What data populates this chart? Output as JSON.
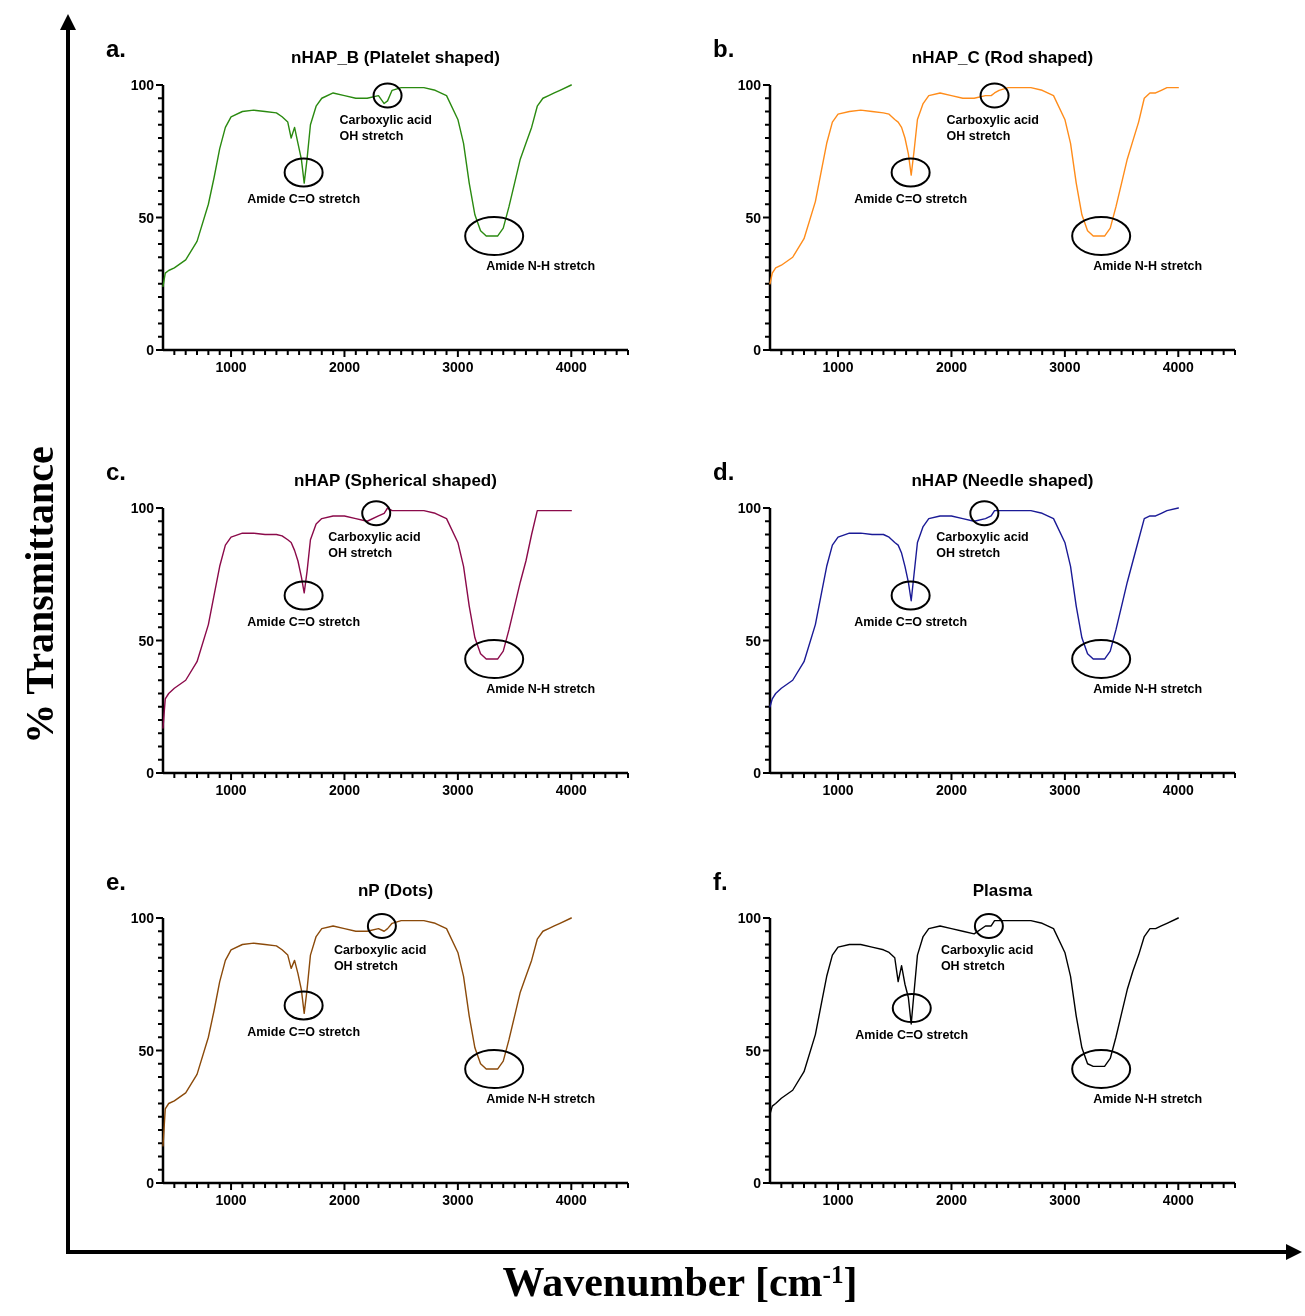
{
  "chart_data": [
    {
      "type": "line",
      "title": "nHAP_B (Platelet shaped)",
      "xlabel": "Wavenumber [cm$^{-1}$]",
      "ylabel": "% Transmittance",
      "xlim": [
        400,
        4500
      ],
      "ylim": [
        0,
        100
      ],
      "xticks": [
        {
          "value": 500,
          "label": null
        },
        {
          "value": 600,
          "label": null
        },
        {
          "value": 700,
          "label": null
        },
        {
          "value": 800,
          "label": null
        },
        {
          "value": 900,
          "label": null
        },
        1000,
        {
          "value": 1100,
          "label": null
        },
        {
          "value": 1200,
          "label": null
        },
        {
          "value": 1300,
          "label": null
        },
        {
          "value": 1400,
          "label": null
        },
        {
          "value": 1500,
          "label": null
        },
        {
          "value": 1600,
          "label": null
        },
        {
          "value": 1700,
          "label": null
        },
        {
          "value": 1800,
          "label": null
        },
        {
          "value": 1900,
          "label": null
        },
        2000,
        {
          "value": 2100,
          "label": null
        },
        {
          "value": 2200,
          "label": null
        },
        {
          "value": 2300,
          "label": null
        },
        {
          "value": 2400,
          "label": null
        },
        {
          "value": 2500,
          "label": null
        },
        {
          "value": 2600,
          "label": null
        },
        {
          "value": 2700,
          "label": null
        },
        {
          "value": 2800,
          "label": null
        },
        {
          "value": 2900,
          "label": null
        },
        3000,
        {
          "value": 3100,
          "label": null
        },
        {
          "value": 3200,
          "label": null
        },
        {
          "value": 3300,
          "label": null
        },
        {
          "value": 3400,
          "label": null
        },
        {
          "value": 3500,
          "label": null
        },
        {
          "value": 3600,
          "label": null
        },
        {
          "value": 3700,
          "label": null
        },
        {
          "value": 3800,
          "label": null
        },
        {
          "value": 3900,
          "label": null
        },
        4000,
        {
          "value": 4100,
          "label": null
        },
        {
          "value": 4200,
          "label": null
        },
        {
          "value": 4300,
          "label": null
        },
        {
          "value": 4400,
          "label": null
        },
        {
          "value": 4500,
          "label": null
        }
      ],
      "yticks": [
        0,
        {
          "value": 5,
          "label": null
        },
        {
          "value": 10,
          "label": null
        },
        {
          "value": 15,
          "label": null
        },
        {
          "value": 20,
          "label": null
        },
        {
          "value": 25,
          "label": null
        },
        {
          "value": 30,
          "label": null
        },
        {
          "value": 35,
          "label": null
        },
        {
          "value": 40,
          "label": null
        },
        {
          "value": 45,
          "label": null
        },
        50,
        {
          "value": 55,
          "label": null
        },
        {
          "value": 60,
          "label": null
        },
        {
          "value": 65,
          "label": null
        },
        {
          "value": 70,
          "label": null
        },
        {
          "value": 75,
          "label": null
        },
        {
          "value": 80,
          "label": null
        },
        {
          "value": 85,
          "label": null
        },
        {
          "value": 90,
          "label": null
        },
        {
          "value": 95,
          "label": null
        },
        100
      ],
      "x": [
        400,
        420,
        450,
        500,
        600,
        700,
        800,
        850,
        900,
        950,
        1000,
        1100,
        1200,
        1300,
        1400,
        1450,
        1500,
        1530,
        1560,
        1590,
        1620,
        1645,
        1670,
        1700,
        1750,
        1800,
        1900,
        2000,
        2100,
        2200,
        2300,
        2350,
        2380,
        2420,
        2500,
        2600,
        2700,
        2800,
        2900,
        3000,
        3050,
        3100,
        3150,
        3200,
        3250,
        3350,
        3400,
        3450,
        3500,
        3550,
        3600,
        3650,
        3700,
        3750,
        3800,
        3850,
        3900,
        4000
      ],
      "series": [
        {
          "color": "#2a8a10",
          "values": [
            24,
            29,
            30,
            31,
            34,
            41,
            55,
            65,
            76,
            84,
            88,
            90,
            90.5,
            90,
            89.5,
            88,
            86,
            80,
            84,
            78,
            72,
            63,
            72,
            85,
            92,
            95,
            97,
            96,
            95,
            95,
            96,
            93,
            94,
            98,
            99,
            99,
            99,
            98,
            96,
            87,
            78,
            63,
            51,
            45,
            43,
            43,
            46,
            54,
            63,
            72,
            78,
            84,
            92,
            95,
            96,
            97,
            98,
            100
          ]
        }
      ],
      "annotations": [
        {
          "text": "Amide C=O stretch",
          "x": 1640,
          "y": 67
        },
        {
          "text": "Carboxylic acid\nOH stretch",
          "x": 2380,
          "y": 96
        },
        {
          "text": "Amide N-H stretch",
          "x": 3320,
          "y": 43
        },
        "a."
      ]
    },
    {
      "type": "line",
      "title": "nHAP_C (Rod shaped)",
      "xlim": [
        400,
        4500
      ],
      "ylim": [
        0,
        100
      ],
      "xticks": [
        {
          "value": 500,
          "label": null
        },
        {
          "value": 600,
          "label": null
        },
        {
          "value": 700,
          "label": null
        },
        {
          "value": 800,
          "label": null
        },
        {
          "value": 900,
          "label": null
        },
        1000,
        {
          "value": 1100,
          "label": null
        },
        {
          "value": 1200,
          "label": null
        },
        {
          "value": 1300,
          "label": null
        },
        {
          "value": 1400,
          "label": null
        },
        {
          "value": 1500,
          "label": null
        },
        {
          "value": 1600,
          "label": null
        },
        {
          "value": 1700,
          "label": null
        },
        {
          "value": 1800,
          "label": null
        },
        {
          "value": 1900,
          "label": null
        },
        2000,
        {
          "value": 2100,
          "label": null
        },
        {
          "value": 2200,
          "label": null
        },
        {
          "value": 2300,
          "label": null
        },
        {
          "value": 2400,
          "label": null
        },
        {
          "value": 2500,
          "label": null
        },
        {
          "value": 2600,
          "label": null
        },
        {
          "value": 2700,
          "label": null
        },
        {
          "value": 2800,
          "label": null
        },
        {
          "value": 2900,
          "label": null
        },
        3000,
        {
          "value": 3100,
          "label": null
        },
        {
          "value": 3200,
          "label": null
        },
        {
          "value": 3300,
          "label": null
        },
        {
          "value": 3400,
          "label": null
        },
        {
          "value": 3500,
          "label": null
        },
        {
          "value": 3600,
          "label": null
        },
        {
          "value": 3700,
          "label": null
        },
        {
          "value": 3800,
          "label": null
        },
        {
          "value": 3900,
          "label": null
        },
        4000,
        {
          "value": 4100,
          "label": null
        },
        {
          "value": 4200,
          "label": null
        },
        {
          "value": 4300,
          "label": null
        },
        {
          "value": 4400,
          "label": null
        },
        {
          "value": 4500,
          "label": null
        }
      ],
      "yticks": [
        0,
        {
          "value": 5,
          "label": null
        },
        {
          "value": 10,
          "label": null
        },
        {
          "value": 15,
          "label": null
        },
        {
          "value": 20,
          "label": null
        },
        {
          "value": 25,
          "label": null
        },
        {
          "value": 30,
          "label": null
        },
        {
          "value": 35,
          "label": null
        },
        {
          "value": 40,
          "label": null
        },
        {
          "value": 45,
          "label": null
        },
        50,
        {
          "value": 55,
          "label": null
        },
        {
          "value": 60,
          "label": null
        },
        {
          "value": 65,
          "label": null
        },
        {
          "value": 70,
          "label": null
        },
        {
          "value": 75,
          "label": null
        },
        {
          "value": 80,
          "label": null
        },
        {
          "value": 85,
          "label": null
        },
        {
          "value": 90,
          "label": null
        },
        {
          "value": 95,
          "label": null
        },
        100
      ],
      "x": [
        400,
        420,
        450,
        500,
        600,
        700,
        800,
        850,
        900,
        950,
        1000,
        1100,
        1200,
        1300,
        1400,
        1450,
        1500,
        1530,
        1560,
        1590,
        1620,
        1645,
        1670,
        1700,
        1750,
        1800,
        1900,
        2000,
        2100,
        2200,
        2300,
        2350,
        2380,
        2420,
        2500,
        2600,
        2700,
        2800,
        2900,
        3000,
        3050,
        3100,
        3150,
        3200,
        3250,
        3350,
        3400,
        3450,
        3500,
        3550,
        3600,
        3650,
        3700,
        3750,
        3800,
        3850,
        3900,
        4000
      ],
      "series": [
        {
          "color": "#ff8c1a",
          "values": [
            25,
            29,
            31,
            32,
            35,
            42,
            56,
            67,
            78,
            86,
            89,
            90,
            90.5,
            90,
            89.5,
            89,
            87,
            86,
            84,
            80,
            74,
            66,
            75,
            87,
            93,
            96,
            97,
            96,
            95,
            95,
            96,
            96,
            97,
            98,
            99,
            99,
            99,
            98,
            96,
            87,
            78,
            63,
            51,
            45,
            43,
            43,
            46,
            54,
            63,
            72,
            79,
            86,
            95,
            97,
            97,
            98,
            99,
            99
          ]
        }
      ],
      "annotations": [
        {
          "text": "Amide C=O stretch",
          "x": 1640,
          "y": 67
        },
        {
          "text": "Carboxylic acid\nOH stretch",
          "x": 2380,
          "y": 96
        },
        {
          "text": "Amide N-H stretch",
          "x": 3320,
          "y": 43
        },
        "b."
      ]
    },
    {
      "type": "line",
      "title": "nHAP (Spherical shaped)",
      "xlim": [
        400,
        4500
      ],
      "ylim": [
        0,
        100
      ],
      "xticks": [
        {
          "value": 500,
          "label": null
        },
        {
          "value": 600,
          "label": null
        },
        {
          "value": 700,
          "label": null
        },
        {
          "value": 800,
          "label": null
        },
        {
          "value": 900,
          "label": null
        },
        1000,
        {
          "value": 1100,
          "label": null
        },
        {
          "value": 1200,
          "label": null
        },
        {
          "value": 1300,
          "label": null
        },
        {
          "value": 1400,
          "label": null
        },
        {
          "value": 1500,
          "label": null
        },
        {
          "value": 1600,
          "label": null
        },
        {
          "value": 1700,
          "label": null
        },
        {
          "value": 1800,
          "label": null
        },
        {
          "value": 1900,
          "label": null
        },
        2000,
        {
          "value": 2100,
          "label": null
        },
        {
          "value": 2200,
          "label": null
        },
        {
          "value": 2300,
          "label": null
        },
        {
          "value": 2400,
          "label": null
        },
        {
          "value": 2500,
          "label": null
        },
        {
          "value": 2600,
          "label": null
        },
        {
          "value": 2700,
          "label": null
        },
        {
          "value": 2800,
          "label": null
        },
        {
          "value": 2900,
          "label": null
        },
        3000,
        {
          "value": 3100,
          "label": null
        },
        {
          "value": 3200,
          "label": null
        },
        {
          "value": 3300,
          "label": null
        },
        {
          "value": 3400,
          "label": null
        },
        {
          "value": 3500,
          "label": null
        },
        {
          "value": 3600,
          "label": null
        },
        {
          "value": 3700,
          "label": null
        },
        {
          "value": 3800,
          "label": null
        },
        {
          "value": 3900,
          "label": null
        },
        4000,
        {
          "value": 4100,
          "label": null
        },
        {
          "value": 4200,
          "label": null
        },
        {
          "value": 4300,
          "label": null
        },
        {
          "value": 4400,
          "label": null
        },
        {
          "value": 4500,
          "label": null
        }
      ],
      "yticks": [
        0,
        {
          "value": 5,
          "label": null
        },
        {
          "value": 10,
          "label": null
        },
        {
          "value": 15,
          "label": null
        },
        {
          "value": 20,
          "label": null
        },
        {
          "value": 25,
          "label": null
        },
        {
          "value": 30,
          "label": null
        },
        {
          "value": 35,
          "label": null
        },
        {
          "value": 40,
          "label": null
        },
        {
          "value": 45,
          "label": null
        },
        50,
        {
          "value": 55,
          "label": null
        },
        {
          "value": 60,
          "label": null
        },
        {
          "value": 65,
          "label": null
        },
        {
          "value": 70,
          "label": null
        },
        {
          "value": 75,
          "label": null
        },
        {
          "value": 80,
          "label": null
        },
        {
          "value": 85,
          "label": null
        },
        {
          "value": 90,
          "label": null
        },
        {
          "value": 95,
          "label": null
        },
        100
      ],
      "x": [
        400,
        420,
        450,
        500,
        600,
        700,
        800,
        850,
        900,
        950,
        1000,
        1100,
        1200,
        1300,
        1400,
        1450,
        1500,
        1530,
        1560,
        1590,
        1620,
        1645,
        1670,
        1700,
        1750,
        1800,
        1900,
        2000,
        2100,
        2200,
        2300,
        2350,
        2380,
        2420,
        2500,
        2600,
        2700,
        2800,
        2900,
        3000,
        3050,
        3100,
        3150,
        3200,
        3250,
        3350,
        3400,
        3450,
        3500,
        3550,
        3600,
        3650,
        3700,
        3750,
        3800,
        3850,
        3900,
        4000
      ],
      "series": [
        {
          "color": "#8b0a4a",
          "values": [
            17,
            28,
            30,
            32,
            35,
            42,
            56,
            67,
            78,
            86,
            89,
            90.5,
            90.5,
            90,
            90,
            89.5,
            88,
            87,
            84,
            80,
            74,
            68,
            76,
            88,
            94,
            96,
            97,
            97,
            96,
            95,
            97,
            98,
            100,
            99,
            99,
            99,
            99,
            98,
            96,
            87,
            78,
            63,
            51,
            45,
            43,
            43,
            46,
            54,
            63,
            72,
            80,
            90,
            99,
            99,
            99,
            99,
            99,
            99
          ]
        }
      ],
      "annotations": [
        {
          "text": "Amide C=O stretch",
          "x": 1640,
          "y": 67
        },
        {
          "text": "Carboxylic acid\nOH stretch",
          "x": 2280,
          "y": 98
        },
        {
          "text": "Amide N-H stretch",
          "x": 3320,
          "y": 43
        },
        "c."
      ]
    },
    {
      "type": "line",
      "title": "nHAP (Needle shaped)",
      "xlim": [
        400,
        4500
      ],
      "ylim": [
        0,
        100
      ],
      "xticks": [
        {
          "value": 500,
          "label": null
        },
        {
          "value": 600,
          "label": null
        },
        {
          "value": 700,
          "label": null
        },
        {
          "value": 800,
          "label": null
        },
        {
          "value": 900,
          "label": null
        },
        1000,
        {
          "value": 1100,
          "label": null
        },
        {
          "value": 1200,
          "label": null
        },
        {
          "value": 1300,
          "label": null
        },
        {
          "value": 1400,
          "label": null
        },
        {
          "value": 1500,
          "label": null
        },
        {
          "value": 1600,
          "label": null
        },
        {
          "value": 1700,
          "label": null
        },
        {
          "value": 1800,
          "label": null
        },
        {
          "value": 1900,
          "label": null
        },
        2000,
        {
          "value": 2100,
          "label": null
        },
        {
          "value": 2200,
          "label": null
        },
        {
          "value": 2300,
          "label": null
        },
        {
          "value": 2400,
          "label": null
        },
        {
          "value": 2500,
          "label": null
        },
        {
          "value": 2600,
          "label": null
        },
        {
          "value": 2700,
          "label": null
        },
        {
          "value": 2800,
          "label": null
        },
        {
          "value": 2900,
          "label": null
        },
        3000,
        {
          "value": 3100,
          "label": null
        },
        {
          "value": 3200,
          "label": null
        },
        {
          "value": 3300,
          "label": null
        },
        {
          "value": 3400,
          "label": null
        },
        {
          "value": 3500,
          "label": null
        },
        {
          "value": 3600,
          "label": null
        },
        {
          "value": 3700,
          "label": null
        },
        {
          "value": 3800,
          "label": null
        },
        {
          "value": 3900,
          "label": null
        },
        4000,
        {
          "value": 4100,
          "label": null
        },
        {
          "value": 4200,
          "label": null
        },
        {
          "value": 4300,
          "label": null
        },
        {
          "value": 4400,
          "label": null
        },
        {
          "value": 4500,
          "label": null
        }
      ],
      "yticks": [
        0,
        {
          "value": 5,
          "label": null
        },
        {
          "value": 10,
          "label": null
        },
        {
          "value": 15,
          "label": null
        },
        {
          "value": 20,
          "label": null
        },
        {
          "value": 25,
          "label": null
        },
        {
          "value": 30,
          "label": null
        },
        {
          "value": 35,
          "label": null
        },
        {
          "value": 40,
          "label": null
        },
        {
          "value": 45,
          "label": null
        },
        50,
        {
          "value": 55,
          "label": null
        },
        {
          "value": 60,
          "label": null
        },
        {
          "value": 65,
          "label": null
        },
        {
          "value": 70,
          "label": null
        },
        {
          "value": 75,
          "label": null
        },
        {
          "value": 80,
          "label": null
        },
        {
          "value": 85,
          "label": null
        },
        {
          "value": 90,
          "label": null
        },
        {
          "value": 95,
          "label": null
        },
        100
      ],
      "x": [
        400,
        420,
        450,
        500,
        600,
        700,
        800,
        850,
        900,
        950,
        1000,
        1100,
        1200,
        1300,
        1400,
        1450,
        1500,
        1530,
        1560,
        1590,
        1620,
        1645,
        1670,
        1700,
        1750,
        1800,
        1900,
        2000,
        2100,
        2200,
        2300,
        2350,
        2380,
        2420,
        2500,
        2600,
        2700,
        2800,
        2900,
        3000,
        3050,
        3100,
        3150,
        3200,
        3250,
        3350,
        3400,
        3450,
        3500,
        3550,
        3600,
        3650,
        3700,
        3750,
        3800,
        3850,
        3900,
        4000
      ],
      "series": [
        {
          "color": "#1a1a96",
          "values": [
            25,
            28,
            30,
            32,
            35,
            42,
            56,
            67,
            78,
            86,
            89,
            90.5,
            90.5,
            90,
            90,
            89,
            87,
            86,
            83,
            78,
            72,
            65,
            75,
            87,
            93,
            96,
            97,
            97,
            96,
            95,
            96,
            97,
            99,
            99,
            99,
            99,
            99,
            98,
            96,
            87,
            78,
            63,
            51,
            45,
            43,
            43,
            46,
            54,
            63,
            72,
            80,
            88,
            96,
            97,
            97,
            98,
            99,
            100
          ]
        }
      ],
      "annotations": [
        {
          "text": "Amide C=O stretch",
          "x": 1640,
          "y": 67
        },
        {
          "text": "Carboxylic acid\nOH stretch",
          "x": 2290,
          "y": 98
        },
        {
          "text": "Amide N-H stretch",
          "x": 3320,
          "y": 43
        },
        "d."
      ]
    },
    {
      "type": "line",
      "title": "nP (Dots)",
      "xlim": [
        400,
        4500
      ],
      "ylim": [
        0,
        100
      ],
      "xticks": [
        {
          "value": 500,
          "label": null
        },
        {
          "value": 600,
          "label": null
        },
        {
          "value": 700,
          "label": null
        },
        {
          "value": 800,
          "label": null
        },
        {
          "value": 900,
          "label": null
        },
        1000,
        {
          "value": 1100,
          "label": null
        },
        {
          "value": 1200,
          "label": null
        },
        {
          "value": 1300,
          "label": null
        },
        {
          "value": 1400,
          "label": null
        },
        {
          "value": 1500,
          "label": null
        },
        {
          "value": 1600,
          "label": null
        },
        {
          "value": 1700,
          "label": null
        },
        {
          "value": 1800,
          "label": null
        },
        {
          "value": 1900,
          "label": null
        },
        2000,
        {
          "value": 2100,
          "label": null
        },
        {
          "value": 2200,
          "label": null
        },
        {
          "value": 2300,
          "label": null
        },
        {
          "value": 2400,
          "label": null
        },
        {
          "value": 2500,
          "label": null
        },
        {
          "value": 2600,
          "label": null
        },
        {
          "value": 2700,
          "label": null
        },
        {
          "value": 2800,
          "label": null
        },
        {
          "value": 2900,
          "label": null
        },
        3000,
        {
          "value": 3100,
          "label": null
        },
        {
          "value": 3200,
          "label": null
        },
        {
          "value": 3300,
          "label": null
        },
        {
          "value": 3400,
          "label": null
        },
        {
          "value": 3500,
          "label": null
        },
        {
          "value": 3600,
          "label": null
        },
        {
          "value": 3700,
          "label": null
        },
        {
          "value": 3800,
          "label": null
        },
        {
          "value": 3900,
          "label": null
        },
        4000,
        {
          "value": 4100,
          "label": null
        },
        {
          "value": 4200,
          "label": null
        },
        {
          "value": 4300,
          "label": null
        },
        {
          "value": 4400,
          "label": null
        },
        {
          "value": 4500,
          "label": null
        }
      ],
      "yticks": [
        0,
        {
          "value": 5,
          "label": null
        },
        {
          "value": 10,
          "label": null
        },
        {
          "value": 15,
          "label": null
        },
        {
          "value": 20,
          "label": null
        },
        {
          "value": 25,
          "label": null
        },
        {
          "value": 30,
          "label": null
        },
        {
          "value": 35,
          "label": null
        },
        {
          "value": 40,
          "label": null
        },
        {
          "value": 45,
          "label": null
        },
        50,
        {
          "value": 55,
          "label": null
        },
        {
          "value": 60,
          "label": null
        },
        {
          "value": 65,
          "label": null
        },
        {
          "value": 70,
          "label": null
        },
        {
          "value": 75,
          "label": null
        },
        {
          "value": 80,
          "label": null
        },
        {
          "value": 85,
          "label": null
        },
        {
          "value": 90,
          "label": null
        },
        {
          "value": 95,
          "label": null
        },
        100
      ],
      "x": [
        400,
        420,
        450,
        500,
        600,
        700,
        800,
        850,
        900,
        950,
        1000,
        1100,
        1200,
        1300,
        1400,
        1450,
        1500,
        1530,
        1560,
        1590,
        1620,
        1645,
        1670,
        1700,
        1750,
        1800,
        1900,
        2000,
        2100,
        2200,
        2300,
        2350,
        2380,
        2420,
        2500,
        2600,
        2700,
        2800,
        2900,
        3000,
        3050,
        3100,
        3150,
        3200,
        3250,
        3350,
        3400,
        3450,
        3500,
        3550,
        3600,
        3650,
        3700,
        3750,
        3800,
        3850,
        3900,
        4000
      ],
      "series": [
        {
          "color": "#8b4a0a",
          "values": [
            14,
            28,
            30,
            31,
            34,
            41,
            55,
            65,
            76,
            84,
            88,
            90,
            90.5,
            90,
            89.5,
            88,
            86,
            81,
            84,
            79,
            73,
            64,
            73,
            86,
            93,
            96,
            97,
            96,
            95,
            95,
            96,
            95,
            96,
            98,
            99,
            99,
            99,
            98,
            96,
            87,
            78,
            63,
            51,
            45,
            43,
            43,
            46,
            54,
            63,
            72,
            78,
            84,
            92,
            95,
            96,
            97,
            98,
            100
          ]
        }
      ],
      "annotations": [
        {
          "text": "Amide C=O stretch",
          "x": 1640,
          "y": 67
        },
        {
          "text": "Carboxylic acid\nOH stretch",
          "x": 2330,
          "y": 97
        },
        {
          "text": "Amide N-H stretch",
          "x": 3320,
          "y": 43
        },
        "e."
      ]
    },
    {
      "type": "line",
      "title": "Plasma",
      "xlim": [
        400,
        4500
      ],
      "ylim": [
        0,
        100
      ],
      "xticks": [
        {
          "value": 500,
          "label": null
        },
        {
          "value": 600,
          "label": null
        },
        {
          "value": 700,
          "label": null
        },
        {
          "value": 800,
          "label": null
        },
        {
          "value": 900,
          "label": null
        },
        1000,
        {
          "value": 1100,
          "label": null
        },
        {
          "value": 1200,
          "label": null
        },
        {
          "value": 1300,
          "label": null
        },
        {
          "value": 1400,
          "label": null
        },
        {
          "value": 1500,
          "label": null
        },
        {
          "value": 1600,
          "label": null
        },
        {
          "value": 1700,
          "label": null
        },
        {
          "value": 1800,
          "label": null
        },
        {
          "value": 1900,
          "label": null
        },
        2000,
        {
          "value": 2100,
          "label": null
        },
        {
          "value": 2200,
          "label": null
        },
        {
          "value": 2300,
          "label": null
        },
        {
          "value": 2400,
          "label": null
        },
        {
          "value": 2500,
          "label": null
        },
        {
          "value": 2600,
          "label": null
        },
        {
          "value": 2700,
          "label": null
        },
        {
          "value": 2800,
          "label": null
        },
        {
          "value": 2900,
          "label": null
        },
        3000,
        {
          "value": 3100,
          "label": null
        },
        {
          "value": 3200,
          "label": null
        },
        {
          "value": 3300,
          "label": null
        },
        {
          "value": 3400,
          "label": null
        },
        {
          "value": 3500,
          "label": null
        },
        {
          "value": 3600,
          "label": null
        },
        {
          "value": 3700,
          "label": null
        },
        {
          "value": 3800,
          "label": null
        },
        {
          "value": 3900,
          "label": null
        },
        4000,
        {
          "value": 4100,
          "label": null
        },
        {
          "value": 4200,
          "label": null
        },
        {
          "value": 4300,
          "label": null
        },
        {
          "value": 4400,
          "label": null
        },
        {
          "value": 4500,
          "label": null
        }
      ],
      "yticks": [
        0,
        {
          "value": 5,
          "label": null
        },
        {
          "value": 10,
          "label": null
        },
        {
          "value": 15,
          "label": null
        },
        {
          "value": 20,
          "label": null
        },
        {
          "value": 25,
          "label": null
        },
        {
          "value": 30,
          "label": null
        },
        {
          "value": 35,
          "label": null
        },
        {
          "value": 40,
          "label": null
        },
        {
          "value": 45,
          "label": null
        },
        50,
        {
          "value": 55,
          "label": null
        },
        {
          "value": 60,
          "label": null
        },
        {
          "value": 65,
          "label": null
        },
        {
          "value": 70,
          "label": null
        },
        {
          "value": 75,
          "label": null
        },
        {
          "value": 80,
          "label": null
        },
        {
          "value": 85,
          "label": null
        },
        {
          "value": 90,
          "label": null
        },
        {
          "value": 95,
          "label": null
        },
        100
      ],
      "x": [
        400,
        420,
        450,
        500,
        600,
        700,
        800,
        850,
        900,
        950,
        1000,
        1100,
        1200,
        1300,
        1400,
        1450,
        1500,
        1530,
        1560,
        1590,
        1620,
        1645,
        1670,
        1700,
        1750,
        1800,
        1900,
        2000,
        2100,
        2200,
        2300,
        2350,
        2380,
        2420,
        2500,
        2600,
        2700,
        2800,
        2900,
        3000,
        3050,
        3100,
        3150,
        3200,
        3250,
        3350,
        3400,
        3450,
        3500,
        3550,
        3600,
        3650,
        3700,
        3750,
        3800,
        3850,
        3900,
        4000
      ],
      "series": [
        {
          "color": "#000000",
          "values": [
            26,
            29,
            30,
            32,
            35,
            42,
            56,
            67,
            78,
            86,
            89,
            90,
            90,
            89,
            88,
            87,
            85,
            76,
            82,
            75,
            70,
            60,
            72,
            86,
            93,
            96,
            97,
            96,
            95,
            94,
            97,
            97,
            99,
            99,
            99,
            99,
            99,
            98,
            96,
            87,
            78,
            63,
            51,
            45,
            44,
            44,
            47,
            55,
            64,
            73,
            80,
            86,
            93,
            96,
            96,
            97,
            98,
            100
          ]
        }
      ],
      "annotations": [
        {
          "text": "Amide C=O stretch",
          "x": 1650,
          "y": 66
        },
        {
          "text": "Carboxylic acid\nOH stretch",
          "x": 2330,
          "y": 97
        },
        {
          "text": "Amide N-H stretch",
          "x": 3320,
          "y": 43
        },
        "f."
      ]
    }
  ]
}
